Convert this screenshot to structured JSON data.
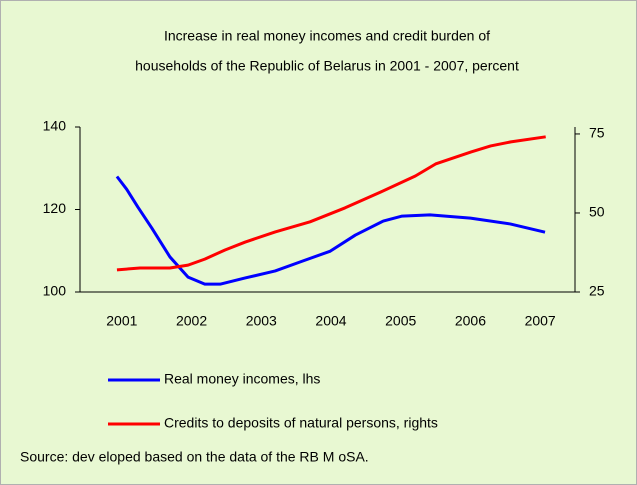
{
  "chart_data": {
    "type": "line",
    "title": [
      "Increase in real money incomes and credit burden of",
      "households of the Republic of Belarus in 2001 - 2007, percent"
    ],
    "xlim": [
      2000.4,
      2007.5
    ],
    "xticks": [
      2001,
      2002,
      2003,
      2004,
      2005,
      2006,
      2007
    ],
    "ylim": [
      100,
      140
    ],
    "yticks": [
      100,
      120,
      140
    ],
    "y2lim": [
      25,
      77.2
    ],
    "y2ticks": [
      25,
      50,
      75
    ],
    "series": [
      {
        "name": "Real money incomes, lhs",
        "color": "#0000ff",
        "x": [
          2000.93,
          2001.07,
          2001.23,
          2001.43,
          2001.69,
          2001.95,
          2002.19,
          2002.41,
          2002.77,
          2003.2,
          2003.56,
          2003.99,
          2004.35,
          2004.75,
          2005.02,
          2005.42,
          2006.0,
          2006.57,
          2007.07
        ],
        "values": [
          128,
          124.9,
          120.6,
          115.5,
          108.5,
          103.6,
          101.9,
          101.9,
          103.4,
          105.1,
          107.3,
          109.9,
          113.8,
          117.2,
          118.4,
          118.7,
          117.9,
          116.5,
          114.5
        ]
      },
      {
        "name": "Credits to deposits of natural persons, rights",
        "color": "#ff0000",
        "axis": "y2",
        "x": [
          2000.93,
          2001.26,
          2001.69,
          2001.95,
          2002.19,
          2002.48,
          2002.77,
          2003.2,
          2003.7,
          2004.2,
          2004.71,
          2005.21,
          2005.5,
          2006.01,
          2006.29,
          2006.58,
          2007.08
        ],
        "values": [
          32.0,
          32.6,
          32.6,
          33.5,
          35.4,
          38.3,
          40.8,
          44.0,
          47.2,
          51.6,
          56.6,
          61.7,
          65.5,
          69.3,
          71.2,
          72.5,
          74.1
        ]
      }
    ],
    "source": "Source: dev eloped based on the data of the RB M oSA."
  }
}
